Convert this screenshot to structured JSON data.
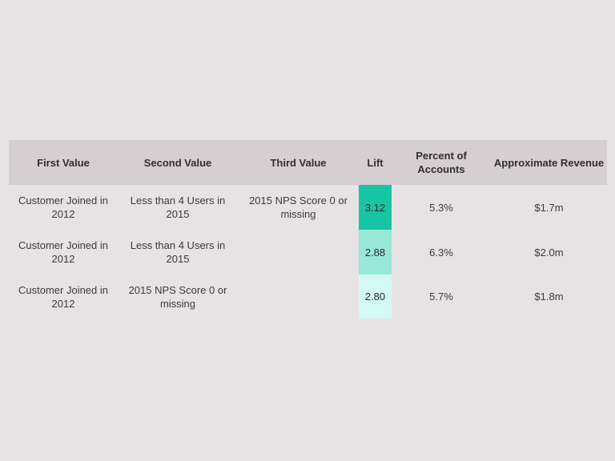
{
  "table": {
    "headers": {
      "first_value": "First Value",
      "second_value": "Second Value",
      "third_value": "Third Value",
      "lift": "Lift",
      "percent_of_accounts": "Percent of Accounts",
      "approximate_revenue": "Approximate Revenue"
    },
    "rows": [
      {
        "first_value": "Customer Joined in 2012",
        "second_value": "Less than 4 Users in 2015",
        "third_value": "2015 NPS Score 0 or missing",
        "lift": "3.12",
        "lift_color": "#17c4a4",
        "percent_of_accounts": "5.3%",
        "approximate_revenue": "$1.7m"
      },
      {
        "first_value": "Customer Joined in 2012",
        "second_value": "Less than 4 Users in 2015",
        "third_value": "",
        "lift": "2.88",
        "lift_color": "#98e8d7",
        "percent_of_accounts": "6.3%",
        "approximate_revenue": "$2.0m"
      },
      {
        "first_value": "Customer Joined in 2012",
        "second_value": "2015 NPS Score 0 or missing",
        "third_value": "",
        "lift": "2.80",
        "lift_color": "#d2faf2",
        "percent_of_accounts": "5.7%",
        "approximate_revenue": "$1.8m"
      }
    ]
  }
}
